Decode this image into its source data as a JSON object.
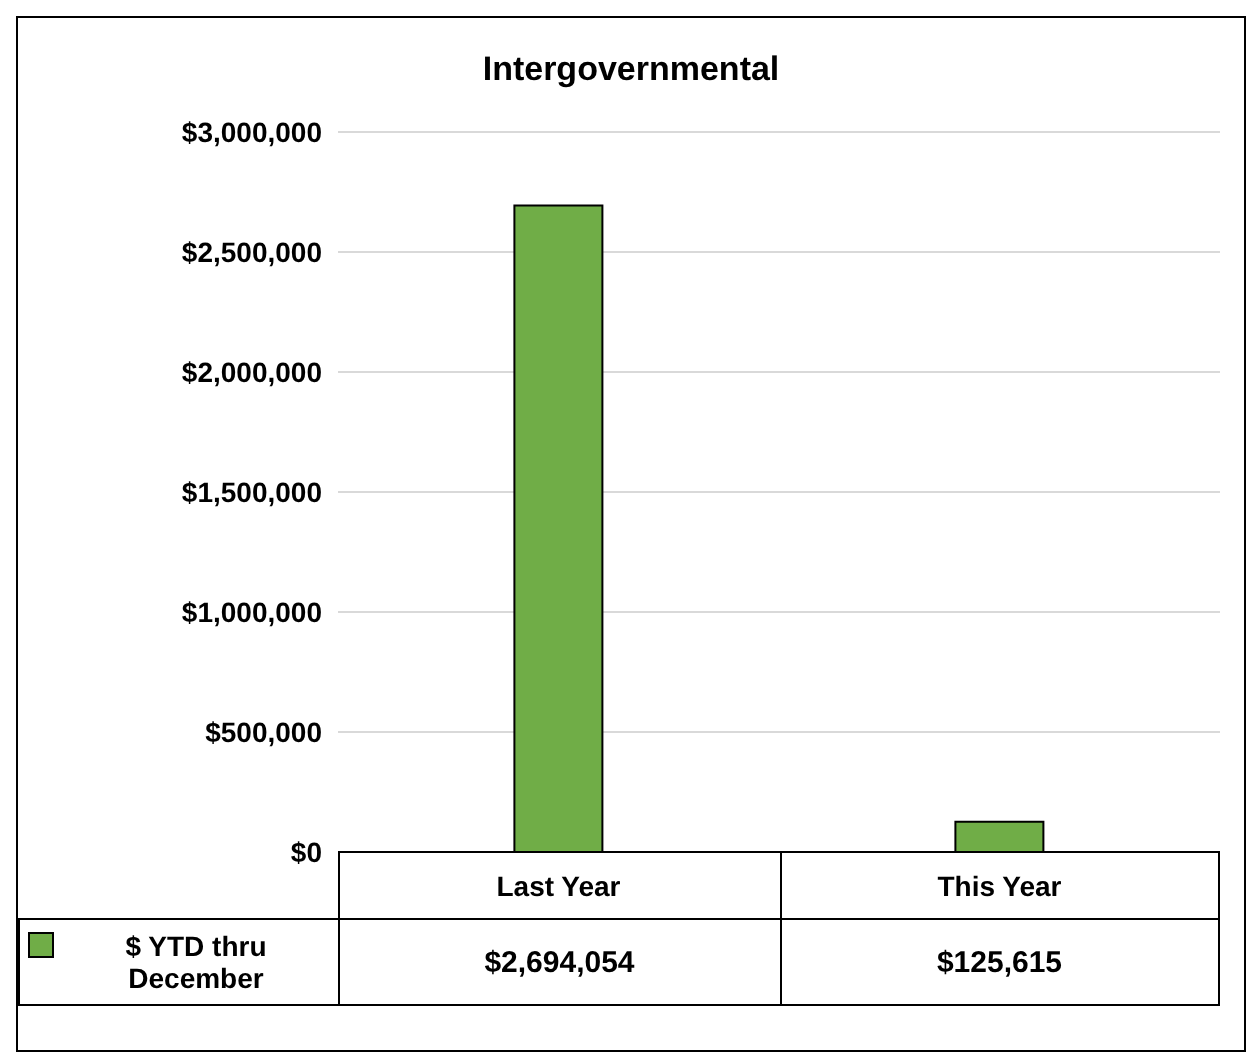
{
  "chart_data": {
    "type": "bar",
    "title": "Intergovernmental",
    "categories": [
      "Last Year",
      "This Year"
    ],
    "series": [
      {
        "name": "$ YTD thru December",
        "color": "#70ad47",
        "values": [
          2694054,
          125615
        ],
        "value_labels": [
          "$2,694,054",
          "$125,615"
        ]
      }
    ],
    "ylim": [
      0,
      3000000
    ],
    "yticks": [
      {
        "value": 0,
        "label": "$0"
      },
      {
        "value": 500000,
        "label": "$500,000"
      },
      {
        "value": 1000000,
        "label": "$1,000,000"
      },
      {
        "value": 1500000,
        "label": "$1,500,000"
      },
      {
        "value": 2000000,
        "label": "$2,000,000"
      },
      {
        "value": 2500000,
        "label": "$2,500,000"
      },
      {
        "value": 3000000,
        "label": "$3,000,000"
      }
    ],
    "grid": "y",
    "legend": "bottom"
  }
}
